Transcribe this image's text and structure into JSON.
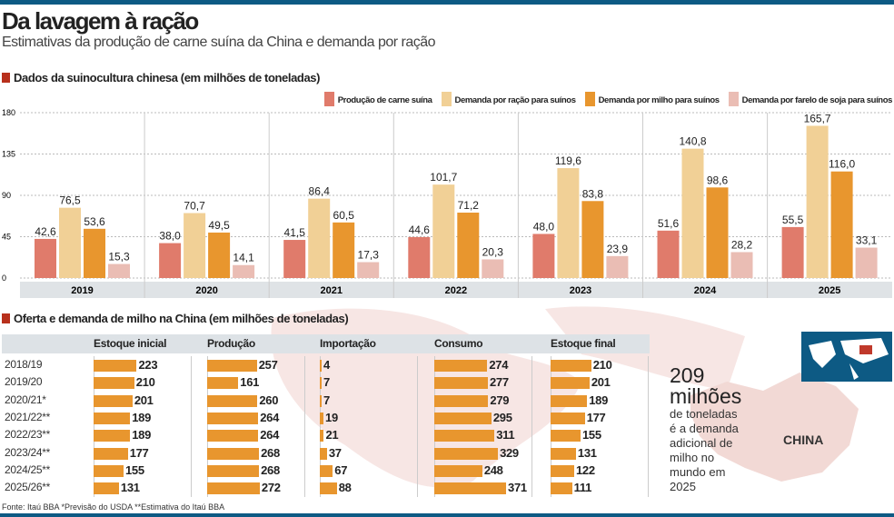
{
  "title": "Da lavagem à ração",
  "subtitle": "Estimativas da produção de carne suína da China e demanda por ração",
  "section1": "Dados da suinocultura chinesa (em milhões de toneladas)",
  "section2": "Oferta e demanda de milho na China (em milhões de toneladas)",
  "colors": {
    "pork": "#e07b6b",
    "feed": "#f1d096",
    "corn": "#e8962e",
    "soy": "#eabdb4",
    "accent": "#b8301c",
    "bar": "#e8962e"
  },
  "chart_data": [
    {
      "type": "bar",
      "ylim": [
        0,
        180
      ],
      "yticks": [
        "0",
        "45",
        "90",
        "135",
        "180"
      ],
      "grid": true,
      "legend": "top-right",
      "categories": [
        "2019",
        "2020",
        "2021",
        "2022",
        "2023",
        "2024",
        "2025"
      ],
      "series": [
        {
          "name": "Produção de carne suína",
          "values": [
            42.6,
            38.0,
            41.5,
            44.6,
            48.0,
            51.6,
            55.5
          ],
          "labels": [
            "42,6",
            "38,0",
            "41,5",
            "44,6",
            "48,0",
            "51,6",
            "55,5"
          ]
        },
        {
          "name": "Demanda por ração para suínos",
          "values": [
            76.5,
            70.7,
            86.4,
            101.7,
            119.6,
            140.8,
            165.7
          ],
          "labels": [
            "76,5",
            "70,7",
            "86,4",
            "101,7",
            "119,6",
            "140,8",
            "165,7"
          ]
        },
        {
          "name": "Demanda por milho para suínos",
          "values": [
            53.6,
            49.5,
            60.5,
            71.2,
            83.8,
            98.6,
            116.0
          ],
          "labels": [
            "53,6",
            "49,5",
            "60,5",
            "71,2",
            "83,8",
            "98,6",
            "116,0"
          ]
        },
        {
          "name": "Demanda por farelo de soja para suínos",
          "values": [
            15.3,
            14.1,
            17.3,
            20.3,
            23.9,
            28.2,
            33.1
          ],
          "labels": [
            "15,3",
            "14,1",
            "17,3",
            "20,3",
            "23,9",
            "28,2",
            "33,1"
          ]
        }
      ]
    },
    {
      "type": "table",
      "columns": [
        "Estoque inicial",
        "Produção",
        "Importação",
        "Consumo",
        "Estoque final"
      ],
      "rows": [
        "2018/19",
        "2019/20",
        "2020/21*",
        "2021/22**",
        "2022/23**",
        "2023/24**",
        "2024/25**",
        "2025/26**"
      ],
      "values": [
        [
          223,
          257,
          4,
          274,
          210
        ],
        [
          210,
          161,
          7,
          277,
          201
        ],
        [
          201,
          260,
          7,
          279,
          189
        ],
        [
          189,
          264,
          19,
          295,
          177
        ],
        [
          189,
          264,
          21,
          311,
          155
        ],
        [
          177,
          268,
          37,
          329,
          131
        ],
        [
          155,
          268,
          67,
          248,
          122
        ],
        [
          131,
          272,
          88,
          371,
          111
        ]
      ]
    }
  ],
  "callout": {
    "number": "209",
    "unit": "milhões",
    "text": "de toneladas é a demanda adicional de milho no mundo em 2025"
  },
  "map_label": "CHINA",
  "source": "Fonte: Itaú BBA *Previsão do USDA **Estimativa do Itaú BBA"
}
